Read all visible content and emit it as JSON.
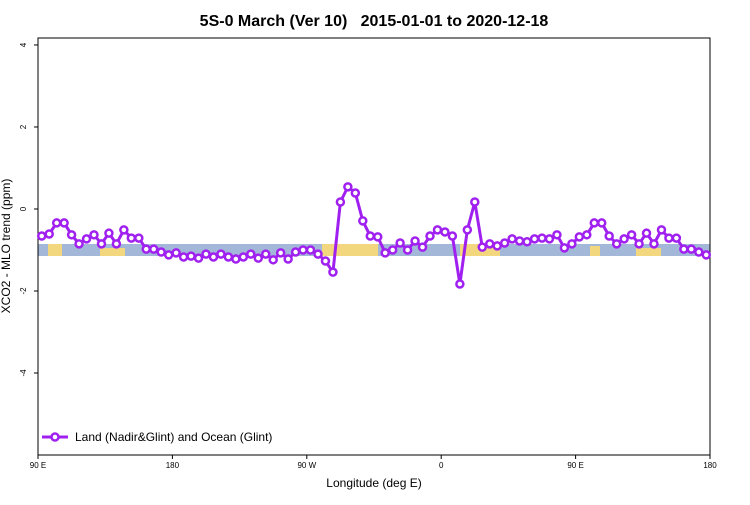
{
  "chart_data": {
    "type": "line",
    "title": "5S-0 March (Ver 10)   2015-01-01 to 2020-12-18",
    "xlabel": "Longitude (deg E)",
    "ylabel": "XCO2 - MLO trend (ppm)",
    "xlim": [
      90,
      540
    ],
    "ylim": [
      -6,
      4.17
    ],
    "xticks": [
      {
        "value": 90,
        "label": "90 E"
      },
      {
        "value": 180,
        "label": "180"
      },
      {
        "value": 270,
        "label": "90 W"
      },
      {
        "value": 360,
        "label": "0"
      },
      {
        "value": 450,
        "label": "90 E"
      },
      {
        "value": 540,
        "label": "180"
      }
    ],
    "yticks": [
      4,
      2,
      0,
      -2,
      -4
    ],
    "legend": "bottom-left",
    "x": [
      92.5,
      97.5,
      102.5,
      107.5,
      112.5,
      117.5,
      122.5,
      127.5,
      132.5,
      137.5,
      142.5,
      147.5,
      152.5,
      157.5,
      162.5,
      167.5,
      172.5,
      177.5,
      182.5,
      187.5,
      192.5,
      197.5,
      202.5,
      207.5,
      212.5,
      217.5,
      222.5,
      227.5,
      232.5,
      237.5,
      242.5,
      247.5,
      252.5,
      257.5,
      262.5,
      267.5,
      272.5,
      277.5,
      282.5,
      287.5,
      292.5,
      297.5,
      302.5,
      307.5,
      312.5,
      317.5,
      322.5,
      327.5,
      332.5,
      337.5,
      342.5,
      347.5,
      352.5,
      357.5,
      362.5,
      367.5,
      372.5,
      377.5,
      382.5,
      387.5,
      392.5,
      397.5,
      402.5,
      407.5,
      412.5,
      417.5,
      422.5,
      427.5,
      432.5,
      437.5,
      442.5,
      447.5,
      452.5,
      457.5,
      462.5,
      467.5,
      472.5,
      477.5,
      482.5,
      487.5,
      492.5,
      497.5,
      502.5,
      507.5,
      512.5,
      517.5,
      522.5,
      527.5,
      532.5,
      537.5
    ],
    "series": [
      {
        "name": "Land (Nadir&Glint) and Ocean (Glint)",
        "color": "#a020f0",
        "values": [
          -0.66,
          -0.61,
          -0.34,
          -0.34,
          -0.63,
          -0.85,
          -0.73,
          -0.63,
          -0.85,
          -0.59,
          -0.85,
          -0.51,
          -0.71,
          -0.71,
          -0.98,
          -0.98,
          -1.05,
          -1.12,
          -1.07,
          -1.17,
          -1.15,
          -1.2,
          -1.1,
          -1.17,
          -1.1,
          -1.17,
          -1.22,
          -1.17,
          -1.1,
          -1.2,
          -1.1,
          -1.24,
          -1.07,
          -1.22,
          -1.05,
          -1.0,
          -1.0,
          -1.1,
          -1.27,
          -1.54,
          0.17,
          0.54,
          0.39,
          -0.29,
          -0.66,
          -0.68,
          -1.07,
          -1.0,
          -0.83,
          -1.0,
          -0.78,
          -0.93,
          -0.66,
          -0.51,
          -0.56,
          -0.66,
          -1.83,
          -0.51,
          0.17,
          -0.93,
          -0.85,
          -0.9,
          -0.83,
          -0.73,
          -0.78,
          -0.8,
          -0.73,
          -0.71,
          -0.73,
          -0.63,
          -0.95,
          -0.85,
          -0.68,
          -0.63,
          -0.34,
          -0.34,
          -0.66,
          -0.85,
          -0.73,
          -0.63,
          -0.85,
          -0.59,
          -0.85,
          -0.51,
          -0.71,
          -0.71,
          -0.98,
          -0.98,
          -1.05,
          -1.12
        ]
      }
    ]
  }
}
